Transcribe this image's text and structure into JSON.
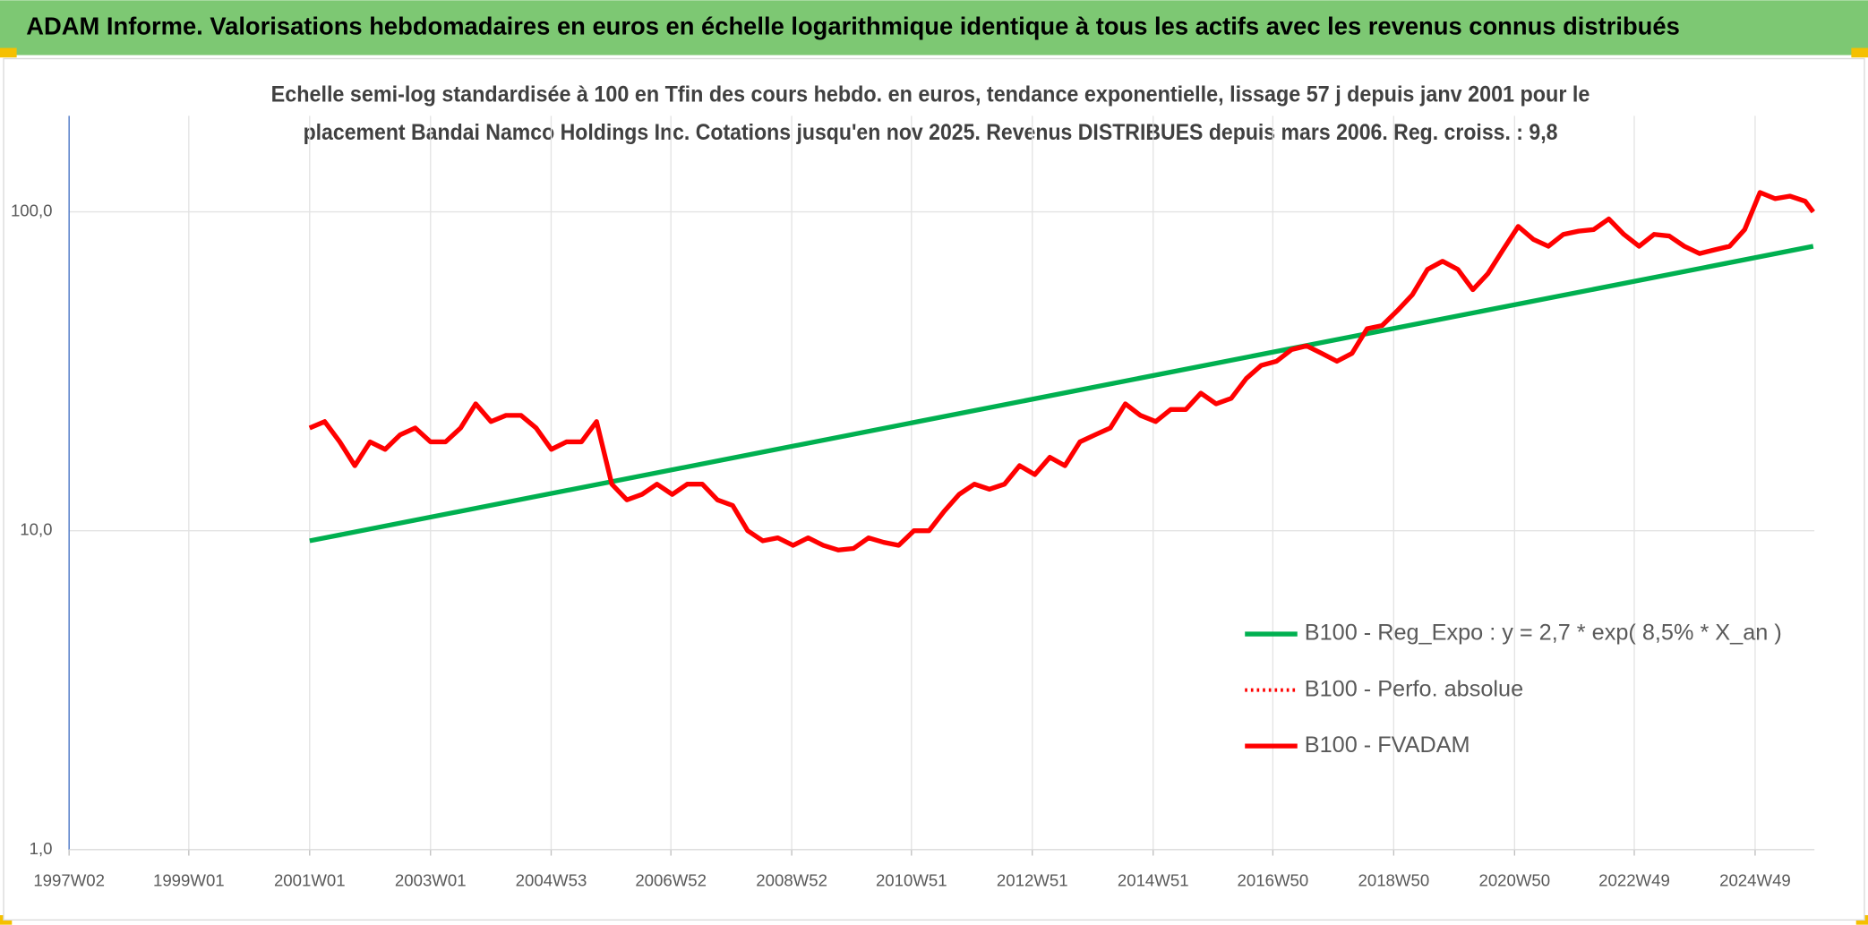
{
  "chart_data": {
    "type": "line",
    "title": "ADAM Informe. Valorisations hebdomadaires en euros en échelle logarithmique identique à tous les actifs avec les revenus connus distribués",
    "subtitle": [
      "Echelle semi-log standardisée à 100 en Tfin des cours hebdo. en euros, tendance exponentielle, lissage 57 j depuis janv 2001 pour le",
      "placement Bandai Namco Holdings Inc. Cotations jusqu'en nov 2025. Revenus DISTRIBUES depuis mars 2006. Reg. croiss. : 9,8"
    ],
    "log_y": true,
    "grid": true,
    "legend": "lower right",
    "xlim": [
      "1997W02",
      "2025W48"
    ],
    "xticks": [
      "1997W02",
      "1999W01",
      "2001W01",
      "2003W01",
      "2004W53",
      "2006W52",
      "2008W52",
      "2010W51",
      "2012W51",
      "2014W51",
      "2016W50",
      "2018W50",
      "2020W50",
      "2022W49",
      "2024W49"
    ],
    "ylim": [
      1,
      200
    ],
    "yticks": [
      {
        "value": 1,
        "label": "1,0"
      },
      {
        "value": 10,
        "label": "10,0"
      },
      {
        "value": 100,
        "label": "100,0"
      }
    ],
    "x": [
      "2001W01",
      "2001W14",
      "2001W27",
      "2001W40",
      "2002W01",
      "2002W14",
      "2002W27",
      "2002W40",
      "2003W01",
      "2003W14",
      "2003W27",
      "2003W40",
      "2004W01",
      "2004W14",
      "2004W27",
      "2004W40",
      "2005W01",
      "2005W14",
      "2005W27",
      "2005W40",
      "2006W01",
      "2006W14",
      "2006W27",
      "2006W40",
      "2007W01",
      "2007W14",
      "2007W27",
      "2007W40",
      "2008W01",
      "2008W14",
      "2008W27",
      "2008W40",
      "2009W01",
      "2009W14",
      "2009W27",
      "2009W40",
      "2010W01",
      "2010W14",
      "2010W27",
      "2010W40",
      "2011W01",
      "2011W14",
      "2011W27",
      "2011W40",
      "2012W01",
      "2012W14",
      "2012W27",
      "2012W40",
      "2013W01",
      "2013W14",
      "2013W27",
      "2013W40",
      "2014W01",
      "2014W14",
      "2014W27",
      "2014W40",
      "2015W01",
      "2015W14",
      "2015W27",
      "2015W40",
      "2016W01",
      "2016W14",
      "2016W27",
      "2016W40",
      "2017W01",
      "2017W14",
      "2017W27",
      "2017W40",
      "2018W01",
      "2018W14",
      "2018W27",
      "2018W40",
      "2019W01",
      "2019W14",
      "2019W27",
      "2019W40",
      "2020W01",
      "2020W14",
      "2020W27",
      "2020W40",
      "2021W01",
      "2021W14",
      "2021W27",
      "2021W40",
      "2022W01",
      "2022W14",
      "2022W27",
      "2022W40",
      "2023W01",
      "2023W14",
      "2023W27",
      "2023W40",
      "2024W01",
      "2024W14",
      "2024W27",
      "2024W40",
      "2025W01",
      "2025W14",
      "2025W27",
      "2025W40",
      "2025W47"
    ],
    "series": [
      {
        "name": "B100 - Reg_Expo : y = 2,7 * exp( 8,5% *  X_an )",
        "color": "#00b050",
        "style": "solid",
        "x": [
          "2001W01",
          "2025W47"
        ],
        "values": [
          9.3,
          78
        ]
      },
      {
        "name": "B100 - Perfo. absolue",
        "color": "#ff0000",
        "style": "dotted",
        "values": [
          21,
          22,
          19,
          16,
          19,
          18,
          20,
          21,
          19,
          19,
          21,
          25,
          22,
          23,
          23,
          21,
          18,
          19,
          19,
          22,
          14,
          12.5,
          13,
          14,
          13,
          14,
          14,
          12.5,
          12,
          10,
          9.3,
          9.5,
          9,
          9.5,
          9,
          8.7,
          8.8,
          9.5,
          9.2,
          9,
          10,
          10,
          11.5,
          13,
          14,
          13.5,
          14,
          16,
          15,
          17,
          16,
          19,
          20,
          21,
          25,
          23,
          22,
          24,
          24,
          27,
          25,
          26,
          30,
          33,
          34,
          37,
          38,
          36,
          34,
          36,
          43,
          44,
          49,
          55,
          66,
          70,
          66,
          57,
          64,
          76,
          90,
          82,
          78,
          85,
          87,
          88,
          95,
          85,
          78,
          85,
          84,
          78,
          74,
          76,
          78,
          88,
          115,
          110,
          112,
          108,
          100
        ]
      },
      {
        "name": "B100 - FVADAM",
        "color": "#ff0000",
        "style": "solid",
        "values": [
          21,
          22,
          19,
          16,
          19,
          18,
          20,
          21,
          19,
          19,
          21,
          25,
          22,
          23,
          23,
          21,
          18,
          19,
          19,
          22,
          14,
          12.5,
          13,
          14,
          13,
          14,
          14,
          12.5,
          12,
          10,
          9.3,
          9.5,
          9,
          9.5,
          9,
          8.7,
          8.8,
          9.5,
          9.2,
          9,
          10,
          10,
          11.5,
          13,
          14,
          13.5,
          14,
          16,
          15,
          17,
          16,
          19,
          20,
          21,
          25,
          23,
          22,
          24,
          24,
          27,
          25,
          26,
          30,
          33,
          34,
          37,
          38,
          36,
          34,
          36,
          43,
          44,
          49,
          55,
          66,
          70,
          66,
          57,
          64,
          76,
          90,
          82,
          78,
          85,
          87,
          88,
          95,
          85,
          78,
          85,
          84,
          78,
          74,
          76,
          78,
          88,
          115,
          110,
          112,
          108,
          100
        ]
      }
    ]
  }
}
